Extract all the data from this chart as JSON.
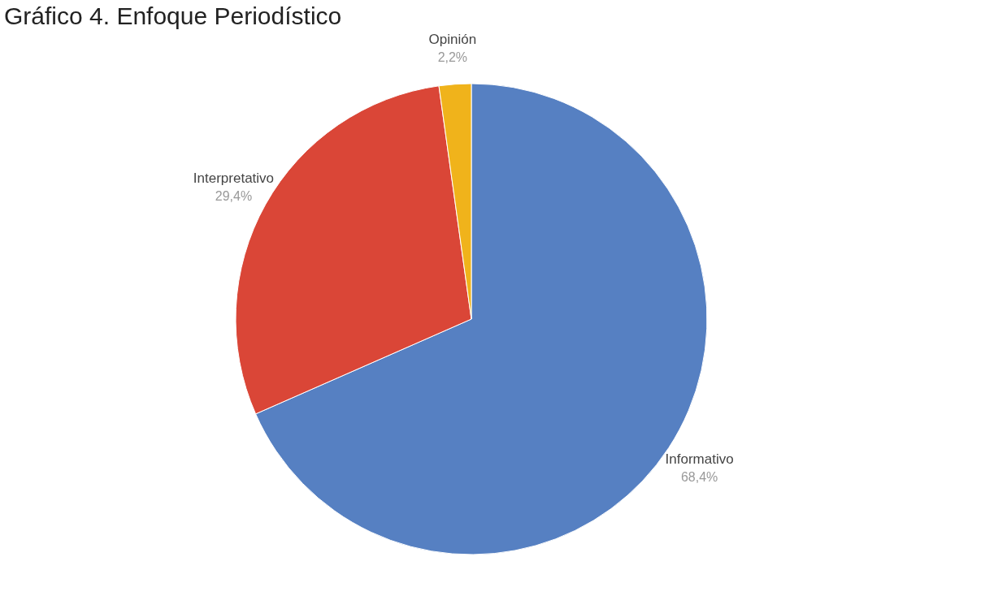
{
  "chart_data": {
    "type": "pie",
    "title": "Gráfico 4. Enfoque Periodístico",
    "categories": [
      "Informativo",
      "Interpretativo",
      "Opinión"
    ],
    "values": [
      68.4,
      29.4,
      2.2
    ],
    "value_labels": [
      "68,4%",
      "29,4%",
      "2,2%"
    ],
    "colors": [
      "#5680c2",
      "#da4637",
      "#f0b31b"
    ],
    "legend": false
  }
}
